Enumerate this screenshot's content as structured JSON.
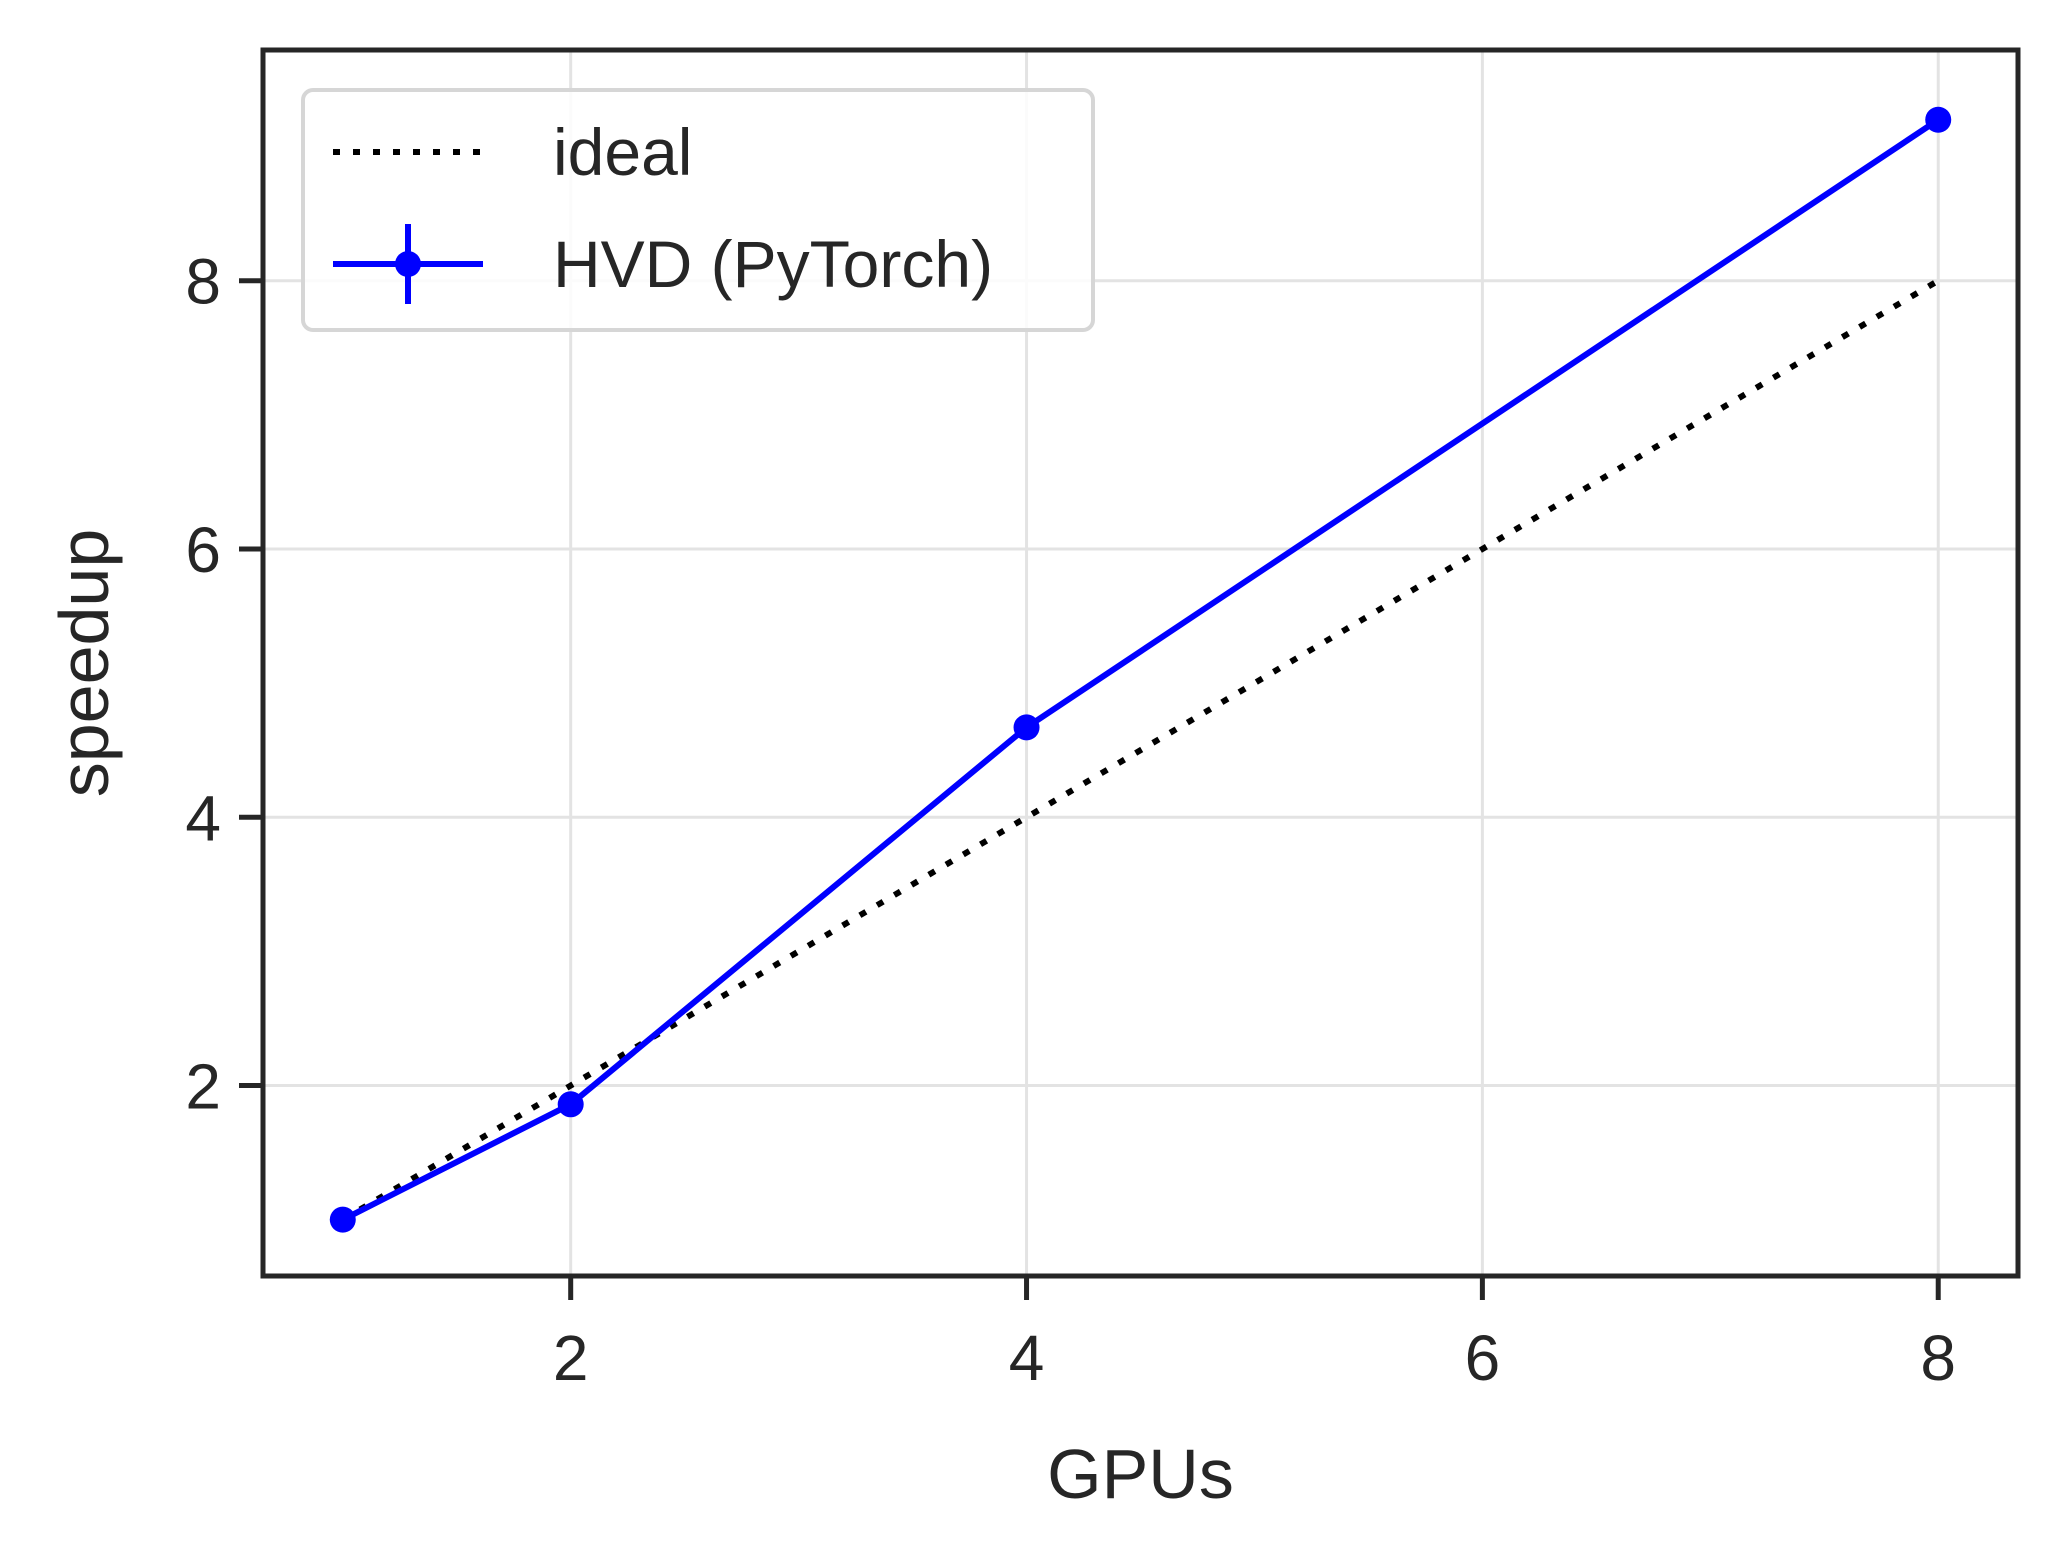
{
  "chart_data": {
    "type": "line",
    "title": "",
    "xlabel": "GPUs",
    "ylabel": "speedup",
    "xlim": [
      0.65,
      8.35
    ],
    "ylim": [
      0.58,
      9.72
    ],
    "xticks": [
      2,
      4,
      6,
      8
    ],
    "yticks": [
      2,
      4,
      6,
      8
    ],
    "xtick_labels": [
      "2",
      "4",
      "6",
      "8"
    ],
    "ytick_labels": [
      "2",
      "4",
      "6",
      "8"
    ],
    "grid": true,
    "legend_position": "top-left",
    "series": [
      {
        "name": "ideal",
        "style": "dotted",
        "color": "#000000",
        "markers": false,
        "x": [
          1,
          2,
          4,
          8
        ],
        "y": [
          1,
          2,
          4,
          8
        ]
      },
      {
        "name": "HVD (PyTorch)",
        "style": "solid",
        "color": "#0000ff",
        "markers": true,
        "errorbars": true,
        "x": [
          1,
          2,
          4,
          8
        ],
        "y": [
          1.0,
          1.86,
          4.67,
          9.2
        ],
        "yerr": [
          0.0,
          0.02,
          0.03,
          0.08
        ]
      }
    ]
  }
}
